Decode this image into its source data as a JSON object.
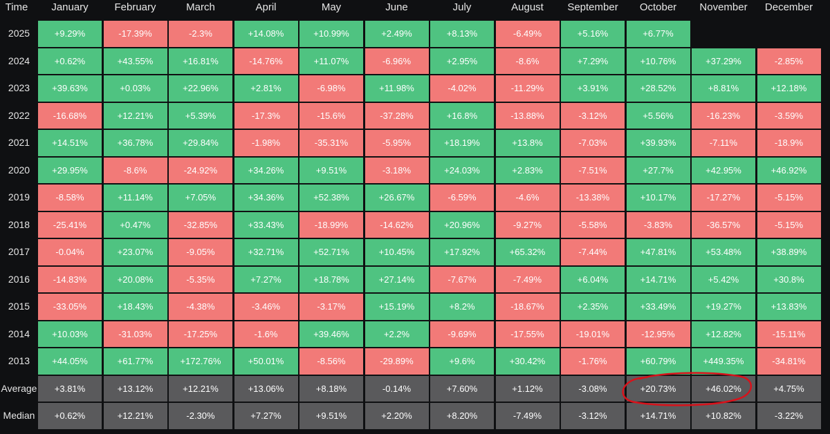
{
  "colors": {
    "positive": "#4fc381",
    "negative": "#f27a78",
    "summary": "#5a5a5c",
    "gap": "#0f1012",
    "annotation": "#d8121b"
  },
  "chart_data": {
    "type": "heatmap",
    "corner_label": "Time",
    "columns": [
      "January",
      "February",
      "March",
      "April",
      "May",
      "June",
      "July",
      "August",
      "September",
      "October",
      "November",
      "December"
    ],
    "rows": [
      {
        "label": "2025",
        "values": [
          9.29,
          -17.39,
          -2.3,
          14.08,
          10.99,
          2.49,
          8.13,
          -6.49,
          5.16,
          6.77,
          null,
          null
        ],
        "text": [
          "+9.29%",
          "-17.39%",
          "-2.3%",
          "+14.08%",
          "+10.99%",
          "+2.49%",
          "+8.13%",
          "-6.49%",
          "+5.16%",
          "+6.77%",
          "",
          ""
        ]
      },
      {
        "label": "2024",
        "values": [
          0.62,
          43.55,
          16.81,
          -14.76,
          11.07,
          -6.96,
          2.95,
          -8.6,
          7.29,
          10.76,
          37.29,
          -2.85
        ],
        "text": [
          "+0.62%",
          "+43.55%",
          "+16.81%",
          "-14.76%",
          "+11.07%",
          "-6.96%",
          "+2.95%",
          "-8.6%",
          "+7.29%",
          "+10.76%",
          "+37.29%",
          "-2.85%"
        ]
      },
      {
        "label": "2023",
        "values": [
          39.63,
          0.03,
          22.96,
          2.81,
          -6.98,
          11.98,
          -4.02,
          -11.29,
          3.91,
          28.52,
          8.81,
          12.18
        ],
        "text": [
          "+39.63%",
          "+0.03%",
          "+22.96%",
          "+2.81%",
          "-6.98%",
          "+11.98%",
          "-4.02%",
          "-11.29%",
          "+3.91%",
          "+28.52%",
          "+8.81%",
          "+12.18%"
        ]
      },
      {
        "label": "2022",
        "values": [
          -16.68,
          12.21,
          5.39,
          -17.3,
          -15.6,
          -37.28,
          16.8,
          -13.88,
          -3.12,
          5.56,
          -16.23,
          -3.59
        ],
        "text": [
          "-16.68%",
          "+12.21%",
          "+5.39%",
          "-17.3%",
          "-15.6%",
          "-37.28%",
          "+16.8%",
          "-13.88%",
          "-3.12%",
          "+5.56%",
          "-16.23%",
          "-3.59%"
        ]
      },
      {
        "label": "2021",
        "values": [
          14.51,
          36.78,
          29.84,
          -1.98,
          -35.31,
          -5.95,
          18.19,
          13.8,
          -7.03,
          39.93,
          -7.11,
          -18.9
        ],
        "text": [
          "+14.51%",
          "+36.78%",
          "+29.84%",
          "-1.98%",
          "-35.31%",
          "-5.95%",
          "+18.19%",
          "+13.8%",
          "-7.03%",
          "+39.93%",
          "-7.11%",
          "-18.9%"
        ]
      },
      {
        "label": "2020",
        "values": [
          29.95,
          -8.6,
          -24.92,
          34.26,
          9.51,
          -3.18,
          24.03,
          2.83,
          -7.51,
          27.7,
          42.95,
          46.92
        ],
        "text": [
          "+29.95%",
          "-8.6%",
          "-24.92%",
          "+34.26%",
          "+9.51%",
          "-3.18%",
          "+24.03%",
          "+2.83%",
          "-7.51%",
          "+27.7%",
          "+42.95%",
          "+46.92%"
        ]
      },
      {
        "label": "2019",
        "values": [
          -8.58,
          11.14,
          7.05,
          34.36,
          52.38,
          26.67,
          -6.59,
          -4.6,
          -13.38,
          10.17,
          -17.27,
          -5.15
        ],
        "text": [
          "-8.58%",
          "+11.14%",
          "+7.05%",
          "+34.36%",
          "+52.38%",
          "+26.67%",
          "-6.59%",
          "-4.6%",
          "-13.38%",
          "+10.17%",
          "-17.27%",
          "-5.15%"
        ]
      },
      {
        "label": "2018",
        "values": [
          -25.41,
          0.47,
          -32.85,
          33.43,
          -18.99,
          -14.62,
          20.96,
          -9.27,
          -5.58,
          -3.83,
          -36.57,
          -5.15
        ],
        "text": [
          "-25.41%",
          "+0.47%",
          "-32.85%",
          "+33.43%",
          "-18.99%",
          "-14.62%",
          "+20.96%",
          "-9.27%",
          "-5.58%",
          "-3.83%",
          "-36.57%",
          "-5.15%"
        ]
      },
      {
        "label": "2017",
        "values": [
          -0.04,
          23.07,
          -9.05,
          32.71,
          52.71,
          10.45,
          17.92,
          65.32,
          -7.44,
          47.81,
          53.48,
          38.89
        ],
        "text": [
          "-0.04%",
          "+23.07%",
          "-9.05%",
          "+32.71%",
          "+52.71%",
          "+10.45%",
          "+17.92%",
          "+65.32%",
          "-7.44%",
          "+47.81%",
          "+53.48%",
          "+38.89%"
        ]
      },
      {
        "label": "2016",
        "values": [
          -14.83,
          20.08,
          -5.35,
          7.27,
          18.78,
          27.14,
          -7.67,
          -7.49,
          6.04,
          14.71,
          5.42,
          30.8
        ],
        "text": [
          "-14.83%",
          "+20.08%",
          "-5.35%",
          "+7.27%",
          "+18.78%",
          "+27.14%",
          "-7.67%",
          "-7.49%",
          "+6.04%",
          "+14.71%",
          "+5.42%",
          "+30.8%"
        ]
      },
      {
        "label": "2015",
        "values": [
          -33.05,
          18.43,
          -4.38,
          -3.46,
          -3.17,
          15.19,
          8.2,
          -18.67,
          2.35,
          33.49,
          19.27,
          13.83
        ],
        "text": [
          "-33.05%",
          "+18.43%",
          "-4.38%",
          "-3.46%",
          "-3.17%",
          "+15.19%",
          "+8.2%",
          "-18.67%",
          "+2.35%",
          "+33.49%",
          "+19.27%",
          "+13.83%"
        ]
      },
      {
        "label": "2014",
        "values": [
          10.03,
          -31.03,
          -17.25,
          -1.6,
          39.46,
          2.2,
          -9.69,
          -17.55,
          -19.01,
          -12.95,
          12.82,
          -15.11
        ],
        "text": [
          "+10.03%",
          "-31.03%",
          "-17.25%",
          "-1.6%",
          "+39.46%",
          "+2.2%",
          "-9.69%",
          "-17.55%",
          "-19.01%",
          "-12.95%",
          "+12.82%",
          "-15.11%"
        ]
      },
      {
        "label": "2013",
        "values": [
          44.05,
          61.77,
          172.76,
          50.01,
          -8.56,
          -29.89,
          9.6,
          30.42,
          -1.76,
          60.79,
          449.35,
          -34.81
        ],
        "text": [
          "+44.05%",
          "+61.77%",
          "+172.76%",
          "+50.01%",
          "-8.56%",
          "-29.89%",
          "+9.6%",
          "+30.42%",
          "-1.76%",
          "+60.79%",
          "+449.35%",
          "-34.81%"
        ]
      }
    ],
    "summary_rows": [
      {
        "label": "Average",
        "values": [
          3.81,
          13.12,
          12.21,
          13.06,
          8.18,
          -0.14,
          7.6,
          1.12,
          -3.08,
          20.73,
          46.02,
          4.75
        ],
        "text": [
          "+3.81%",
          "+13.12%",
          "+12.21%",
          "+13.06%",
          "+8.18%",
          "-0.14%",
          "+7.60%",
          "+1.12%",
          "-3.08%",
          "+20.73%",
          "+46.02%",
          "+4.75%"
        ]
      },
      {
        "label": "Median",
        "values": [
          0.62,
          12.21,
          -2.3,
          7.27,
          9.51,
          2.2,
          8.2,
          -7.49,
          -3.12,
          14.71,
          10.82,
          -3.22
        ],
        "text": [
          "+0.62%",
          "+12.21%",
          "-2.30%",
          "+7.27%",
          "+9.51%",
          "+2.20%",
          "+8.20%",
          "-7.49%",
          "-3.12%",
          "+14.71%",
          "+10.82%",
          "-3.22%"
        ]
      }
    ],
    "annotation": {
      "type": "hand-drawn-circle",
      "row": "Average",
      "columns": [
        "October",
        "November"
      ]
    }
  }
}
